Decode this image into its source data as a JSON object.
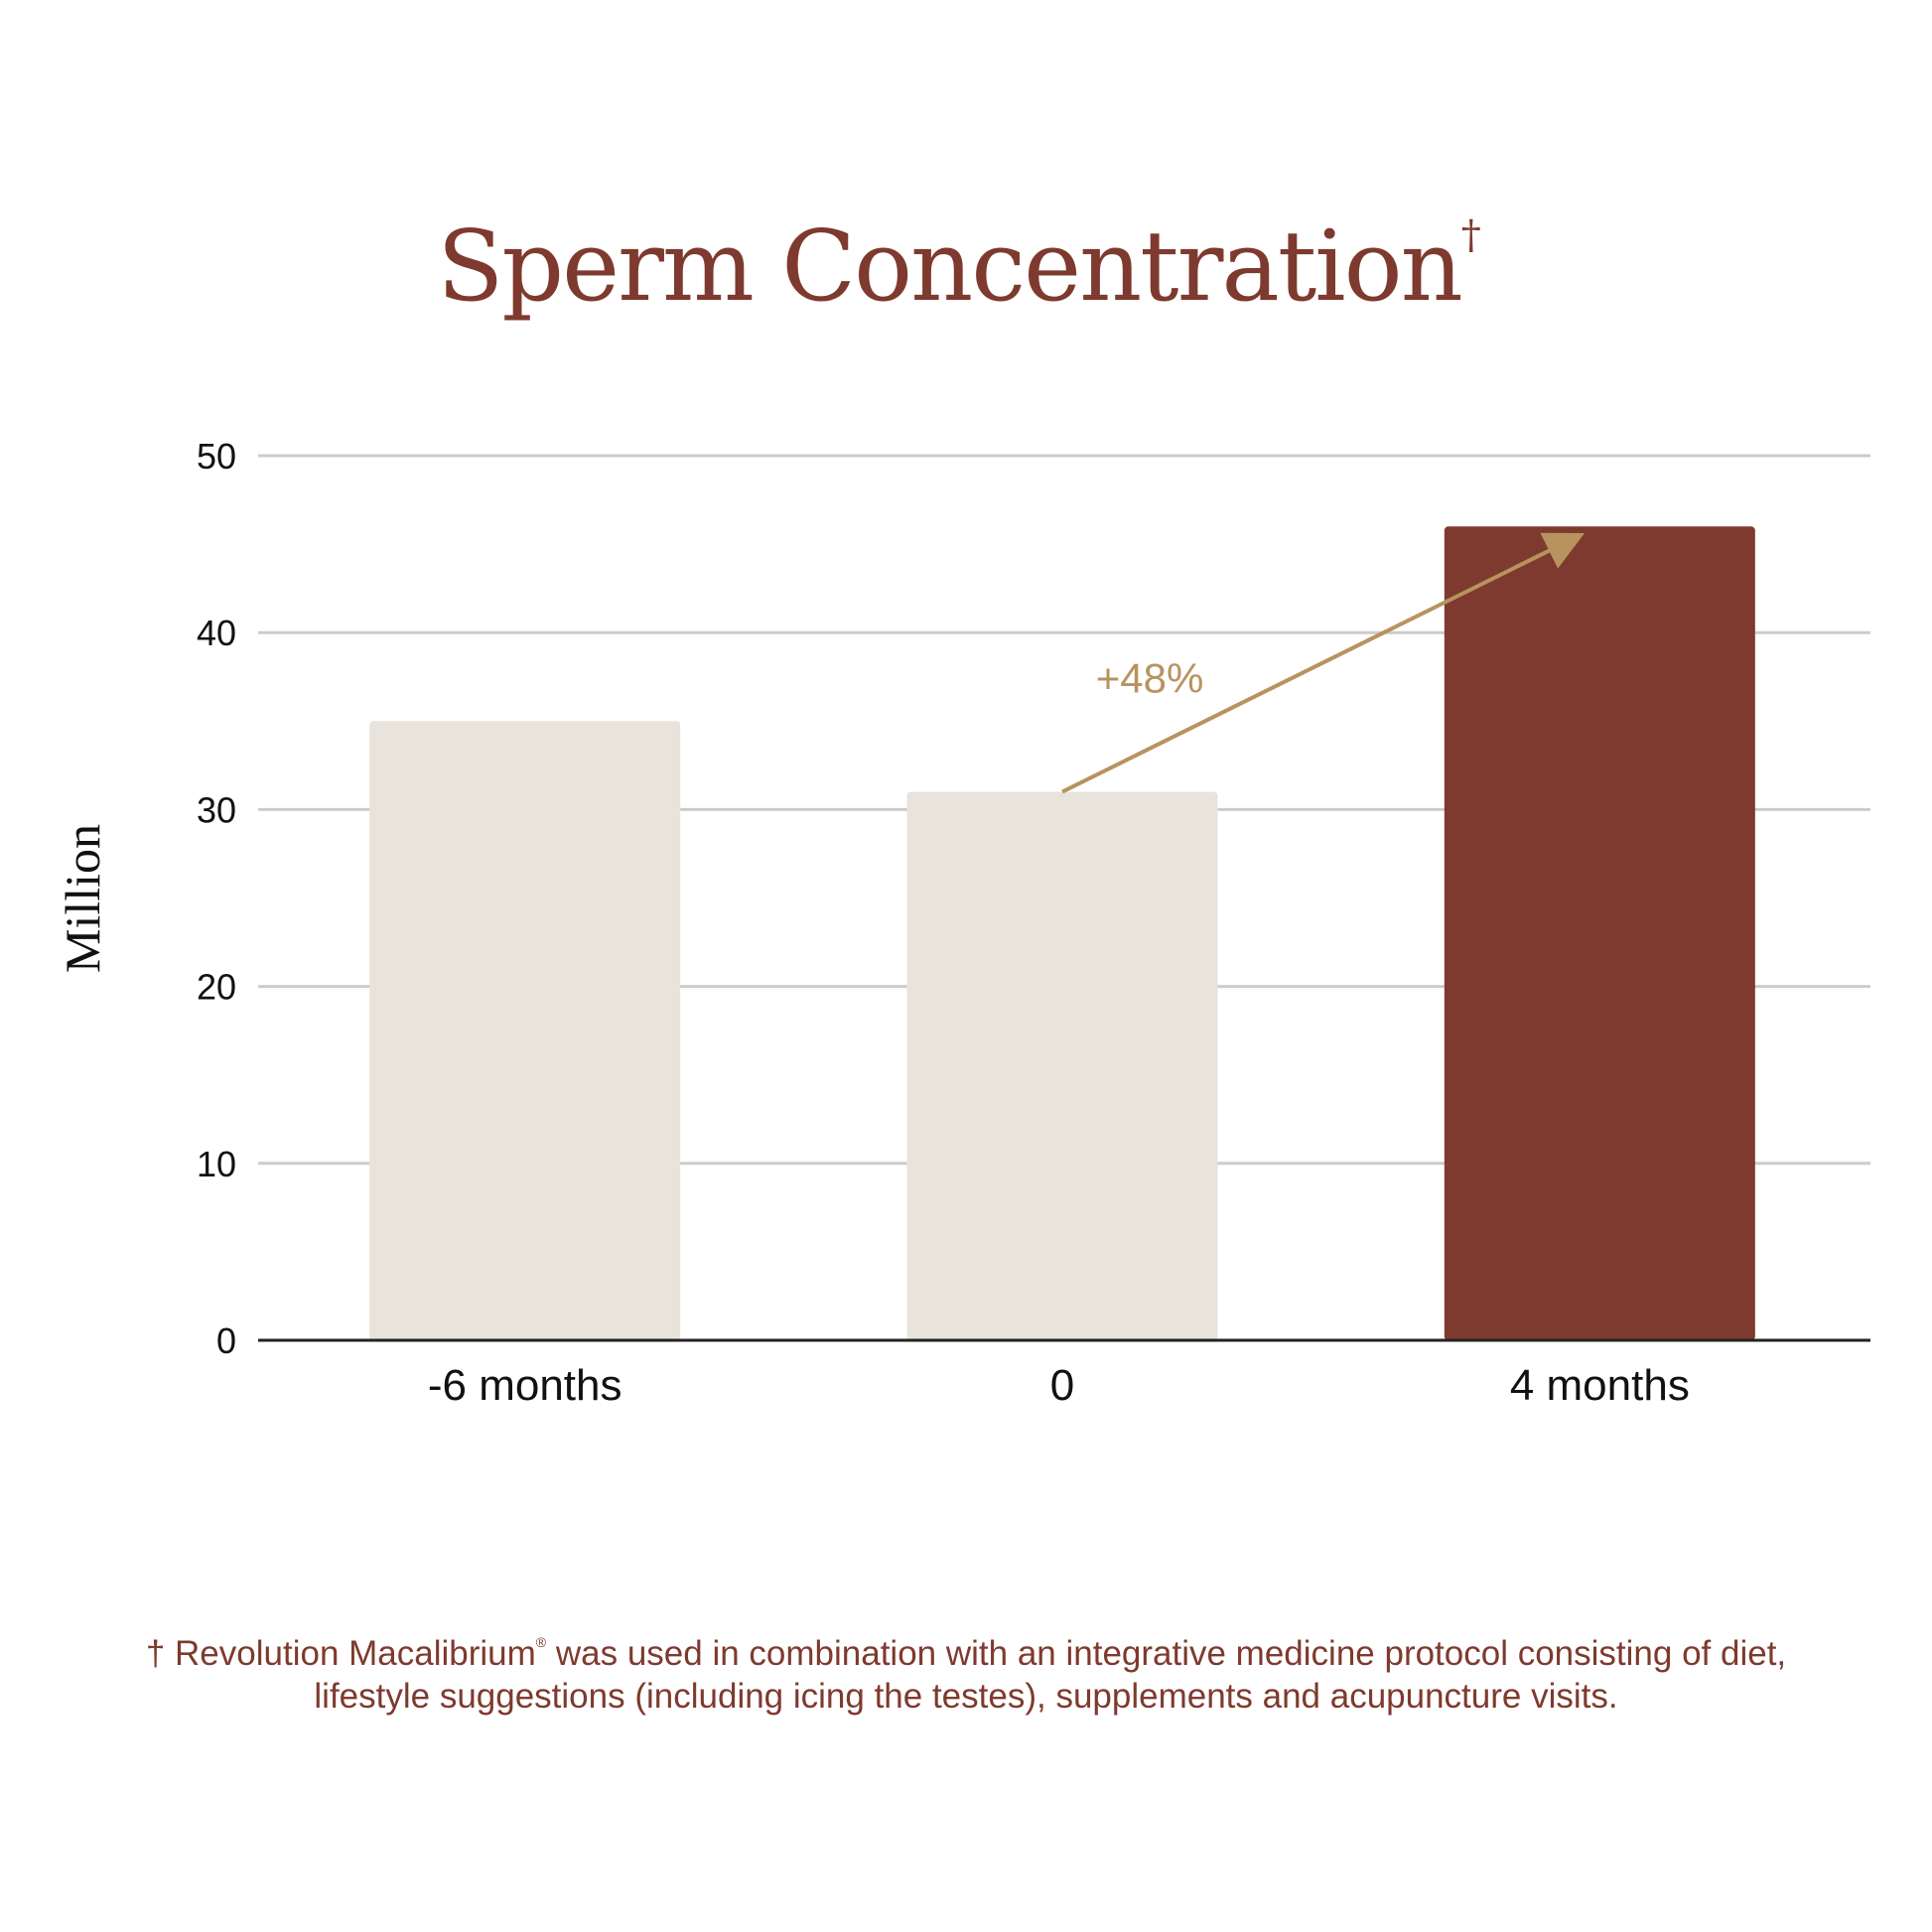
{
  "chart_data": {
    "type": "bar",
    "title": "Sperm Concentration",
    "title_mark": "†",
    "ylabel": "Million",
    "xlabel": "",
    "categories": [
      "-6 months",
      "0",
      "4 months"
    ],
    "values": [
      35,
      31,
      46
    ],
    "bar_colors": [
      "#e8e4dc",
      "#e8e4dc",
      "#7e3a2e"
    ],
    "ylim": [
      0,
      50
    ],
    "yticks": [
      0,
      10,
      20,
      30,
      40,
      50
    ],
    "grid": true,
    "annotation": {
      "text": "+48%",
      "from_category": "0",
      "to_category": "4 months",
      "color": "#b8935e"
    }
  },
  "footnote": {
    "marker": "†",
    "brand": "Revolution Macalibrium",
    "registered": "®",
    "text_line1": "was used in combination with an integrative medicine protocol consisting of diet,",
    "text_line2": "lifestyle suggestions (including icing the testes), supplements and acupuncture visits."
  },
  "colors": {
    "accent": "#7e3a2e",
    "bar_light": "#e8e4dc",
    "arrow": "#b8935e",
    "grid": "#cccccc"
  }
}
